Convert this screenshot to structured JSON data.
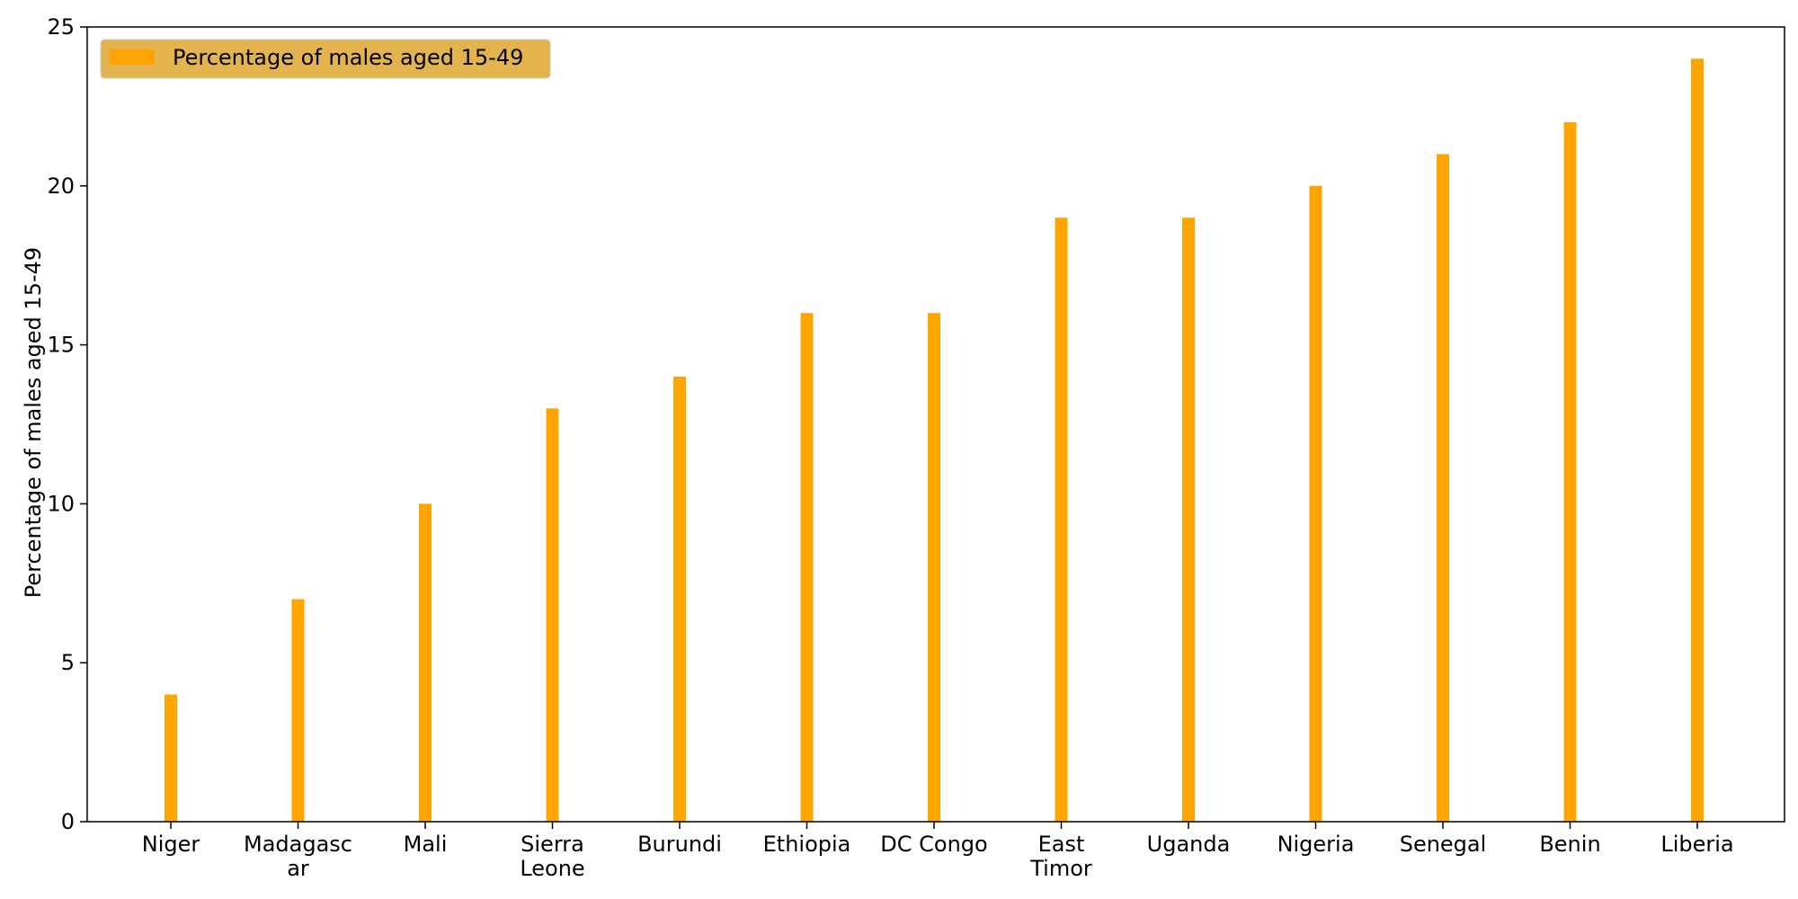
{
  "chart_data": {
    "type": "bar",
    "ylabel": "Percentage of males aged 15-49",
    "xlabel": "",
    "ylim": [
      0,
      25
    ],
    "yticks": [
      0,
      5,
      10,
      15,
      20,
      25
    ],
    "grid": false,
    "legend": {
      "placement": "top-left",
      "entries": [
        "Percentage of males aged 15-49"
      ]
    },
    "categories": [
      [
        "Niger"
      ],
      [
        "Madagasc",
        "ar"
      ],
      [
        "Mali"
      ],
      [
        "Sierra",
        "Leone"
      ],
      [
        "Burundi"
      ],
      [
        "Ethiopia"
      ],
      [
        "DC Congo"
      ],
      [
        "East",
        "Timor"
      ],
      [
        "Uganda"
      ],
      [
        "Nigeria"
      ],
      [
        "Senegal"
      ],
      [
        "Benin"
      ],
      [
        "Liberia"
      ]
    ],
    "series": [
      {
        "name": "Percentage of males aged 15-49",
        "color": "#ffa500",
        "values": [
          4,
          7,
          10,
          13,
          14,
          16,
          16,
          19,
          19,
          20,
          21,
          22,
          24
        ]
      }
    ],
    "colors": {
      "legend_bg": "#e3b44e",
      "legend_border": "#cccccc"
    }
  }
}
